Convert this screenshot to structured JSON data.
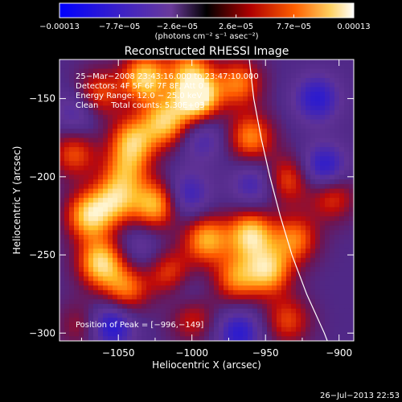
{
  "chart_data": {
    "type": "heatmap",
    "title": "Reconstructed RHESSI Image",
    "xlabel": "Heliocentric X (arcsec)",
    "ylabel": "Heliocentric Y (arcsec)",
    "xlim": [
      -1090,
      -890
    ],
    "ylim": [
      -305,
      -125
    ],
    "x_ticks": [
      -1050,
      -1000,
      -950,
      -900
    ],
    "y_ticks": [
      -150,
      -200,
      -250,
      -300
    ],
    "x_tick_labels": [
      "−1050",
      "−1000",
      "−950",
      "−900"
    ],
    "y_tick_labels": [
      "−150",
      "−200",
      "−250",
      "−300"
    ],
    "colorbar": {
      "unit": "(photons cm⁻² s⁻¹ asec⁻²)",
      "range": [
        -0.00013,
        0.00013
      ],
      "tick_values": [
        -0.00013,
        -7.7e-05,
        -2.6e-05,
        2.6e-05,
        7.7e-05,
        0.00013
      ],
      "tick_labels": [
        "−0.00013",
        "−7.7e−05",
        "−2.6e−05",
        "2.6e−05",
        "7.7e−05",
        "0.00013"
      ]
    },
    "info_lines": [
      "25−Mar−2008 23:43:16.000 to 23:47:10.000",
      "Detectors: 4F 5F 6F 7F 8F, Att 0",
      "Energy Range: 12.0 − 25.0 keV",
      "Clean     Total counts: 5.30E+03"
    ],
    "peak_label": "Position of Peak = [−996,−149]",
    "peak_position": [
      -996,
      -149
    ],
    "limb_curve": [
      [
        -961,
        -125
      ],
      [
        -958,
        -150
      ],
      [
        -953,
        -175
      ],
      [
        -947,
        -200
      ],
      [
        -940,
        -225
      ],
      [
        -932,
        -250
      ],
      [
        -922,
        -275
      ],
      [
        -910,
        -300
      ],
      [
        -908,
        -305
      ]
    ],
    "intensity_blobs": [
      {
        "x": -1032,
        "y": -137,
        "value": 1.0
      },
      {
        "x": -1018,
        "y": -165,
        "value": 0.9
      },
      {
        "x": -1040,
        "y": -177,
        "value": 0.85
      },
      {
        "x": -997,
        "y": -149,
        "value": 1.3
      },
      {
        "x": -1063,
        "y": -147,
        "value": 0.6
      },
      {
        "x": -1002,
        "y": -130,
        "value": 0.6
      },
      {
        "x": -968,
        "y": -140,
        "value": 0.7
      },
      {
        "x": -960,
        "y": -175,
        "value": 0.75
      },
      {
        "x": -1070,
        "y": -225,
        "value": 0.95
      },
      {
        "x": -1052,
        "y": -215,
        "value": 0.8
      },
      {
        "x": -1025,
        "y": -218,
        "value": 0.9
      },
      {
        "x": -1062,
        "y": -255,
        "value": 1.0
      },
      {
        "x": -1045,
        "y": -272,
        "value": 0.7
      },
      {
        "x": -1015,
        "y": -262,
        "value": 0.6
      },
      {
        "x": -990,
        "y": -240,
        "value": 0.85
      },
      {
        "x": -960,
        "y": -237,
        "value": 1.0
      },
      {
        "x": -970,
        "y": -265,
        "value": 0.7
      },
      {
        "x": -948,
        "y": -260,
        "value": 0.9
      },
      {
        "x": -930,
        "y": -240,
        "value": 0.7
      },
      {
        "x": -935,
        "y": -292,
        "value": 0.55
      },
      {
        "x": -1000,
        "y": -290,
        "value": 0.5
      },
      {
        "x": -905,
        "y": -212,
        "value": 0.6
      },
      {
        "x": -1080,
        "y": -185,
        "value": 0.6
      },
      {
        "x": -1075,
        "y": -295,
        "value": 0.35
      },
      {
        "x": -935,
        "y": -202,
        "value": 0.6
      },
      {
        "x": -1045,
        "y": -196,
        "value": 0.6
      },
      {
        "x": -915,
        "y": -150,
        "value": -0.6
      },
      {
        "x": -910,
        "y": -195,
        "value": -0.7
      },
      {
        "x": -1055,
        "y": -295,
        "value": -0.7
      },
      {
        "x": -968,
        "y": -300,
        "value": -0.6
      },
      {
        "x": -1003,
        "y": -212,
        "value": -0.5
      },
      {
        "x": -1078,
        "y": -160,
        "value": -0.4
      },
      {
        "x": -958,
        "y": -205,
        "value": -0.45
      },
      {
        "x": -993,
        "y": -175,
        "value": -0.4
      },
      {
        "x": -1035,
        "y": -245,
        "value": -0.3
      },
      {
        "x": -1005,
        "y": -275,
        "value": -0.3
      }
    ]
  },
  "timestamp": "26−Jul−2013 22:53"
}
